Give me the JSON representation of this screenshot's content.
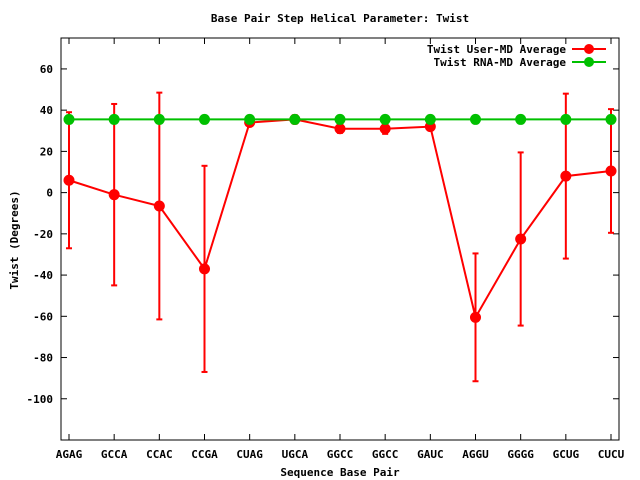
{
  "chart_data": {
    "type": "line",
    "title": "Base Pair Step Helical Parameter: Twist",
    "xlabel": "Sequence Base Pair",
    "ylabel": "Twist (Degrees)",
    "categories": [
      "AGAG",
      "GCCA",
      "CCAC",
      "CCGA",
      "CUAG",
      "UGCA",
      "GGCC",
      "GGCC",
      "GAUC",
      "AGGU",
      "GGGG",
      "GCUG",
      "CUCU"
    ],
    "ylim": [
      -120,
      75
    ],
    "yticks": [
      -100,
      -80,
      -60,
      -40,
      -20,
      0,
      20,
      40,
      60
    ],
    "grid": false,
    "legend_position": "top-right",
    "series": [
      {
        "name": "Twist User-MD Average",
        "color": "#ff0000",
        "values": [
          6,
          -1,
          -6.5,
          -37,
          34,
          35.5,
          31,
          31,
          32,
          -60.5,
          -22.5,
          8,
          10.5
        ],
        "errors": [
          33,
          44,
          55,
          50,
          1.5,
          2,
          2,
          2.5,
          1,
          31,
          42,
          40,
          30
        ]
      },
      {
        "name": "Twist RNA-MD Average",
        "color": "#00c000",
        "values": [
          35.5,
          35.5,
          35.5,
          35.5,
          35.5,
          35.5,
          35.5,
          35.5,
          35.5,
          35.5,
          35.5,
          35.5,
          35.5
        ]
      }
    ]
  }
}
